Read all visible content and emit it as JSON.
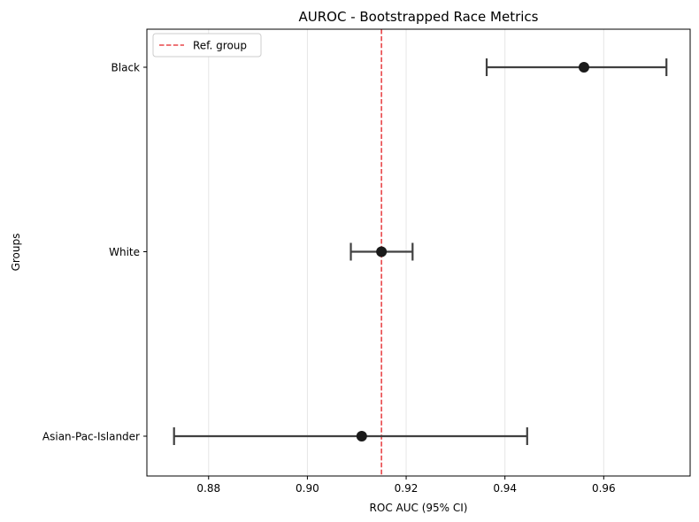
{
  "chart_data": {
    "type": "errorbar",
    "title": "AUROC - Bootstrapped Race Metrics",
    "xlabel": "ROC AUC (95% CI)",
    "ylabel": "Groups",
    "xlim": [
      0.8675,
      0.9775
    ],
    "xticks": [
      0.88,
      0.9,
      0.92,
      0.94,
      0.96
    ],
    "xtick_labels": [
      "0.88",
      "0.90",
      "0.92",
      "0.94",
      "0.96"
    ],
    "grid": "x",
    "legend": {
      "placement": "top-left",
      "entries": [
        "Ref. group"
      ]
    },
    "reference_line": {
      "x": 0.915,
      "label": "Ref. group",
      "color": "#e8474a",
      "style": "dashed"
    },
    "groups": [
      {
        "name": "Black",
        "value": 0.956,
        "ci_low": 0.9363,
        "ci_high": 0.9727
      },
      {
        "name": "White",
        "value": 0.915,
        "ci_low": 0.9088,
        "ci_high": 0.9213
      },
      {
        "name": "Asian-Pac-Islander",
        "value": 0.911,
        "ci_low": 0.873,
        "ci_high": 0.9445
      }
    ],
    "colors": {
      "marker": "#1a1a1a",
      "errorbar": "#404040",
      "grid": "#e6e6e6"
    }
  }
}
